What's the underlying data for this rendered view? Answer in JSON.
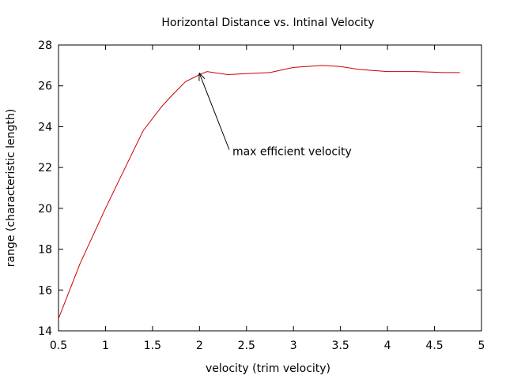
{
  "chart_data": {
    "type": "line",
    "title": "Horizontal Distance vs. Intinal Velocity",
    "xlabel": "velocity (trim velocity)",
    "ylabel": "range (characteristic length)",
    "xlim": [
      0.5,
      5
    ],
    "ylim": [
      14,
      28
    ],
    "xticks": [
      0.5,
      1,
      1.5,
      2,
      2.5,
      3,
      3.5,
      4,
      4.5,
      5
    ],
    "xtick_labels": [
      "0.5",
      "1",
      "1.5",
      "2",
      "2.5",
      "3",
      "3.5",
      "4",
      "4.5",
      "5"
    ],
    "yticks": [
      14,
      16,
      18,
      20,
      22,
      24,
      26,
      28
    ],
    "ytick_labels": [
      "14",
      "16",
      "18",
      "20",
      "22",
      "24",
      "26",
      "28"
    ],
    "grid": false,
    "series": [
      {
        "color": "#cc0000",
        "x": [
          0.5,
          0.73,
          1.0,
          1.2,
          1.4,
          1.6,
          1.7,
          1.85,
          2.0,
          2.08,
          2.3,
          2.5,
          2.75,
          3.0,
          3.3,
          3.5,
          3.7,
          4.0,
          4.3,
          4.6,
          4.77
        ],
        "y": [
          14.6,
          17.3,
          20.0,
          21.9,
          23.8,
          25.0,
          25.5,
          26.2,
          26.55,
          26.7,
          26.55,
          26.6,
          26.65,
          26.9,
          27.0,
          26.95,
          26.8,
          26.7,
          26.7,
          26.65,
          26.65
        ]
      }
    ],
    "annotations": [
      {
        "text": "max efficient velocity",
        "point_x": 2.0,
        "point_y": 26.6,
        "text_x": 2.35,
        "text_y": 22.6
      }
    ]
  }
}
